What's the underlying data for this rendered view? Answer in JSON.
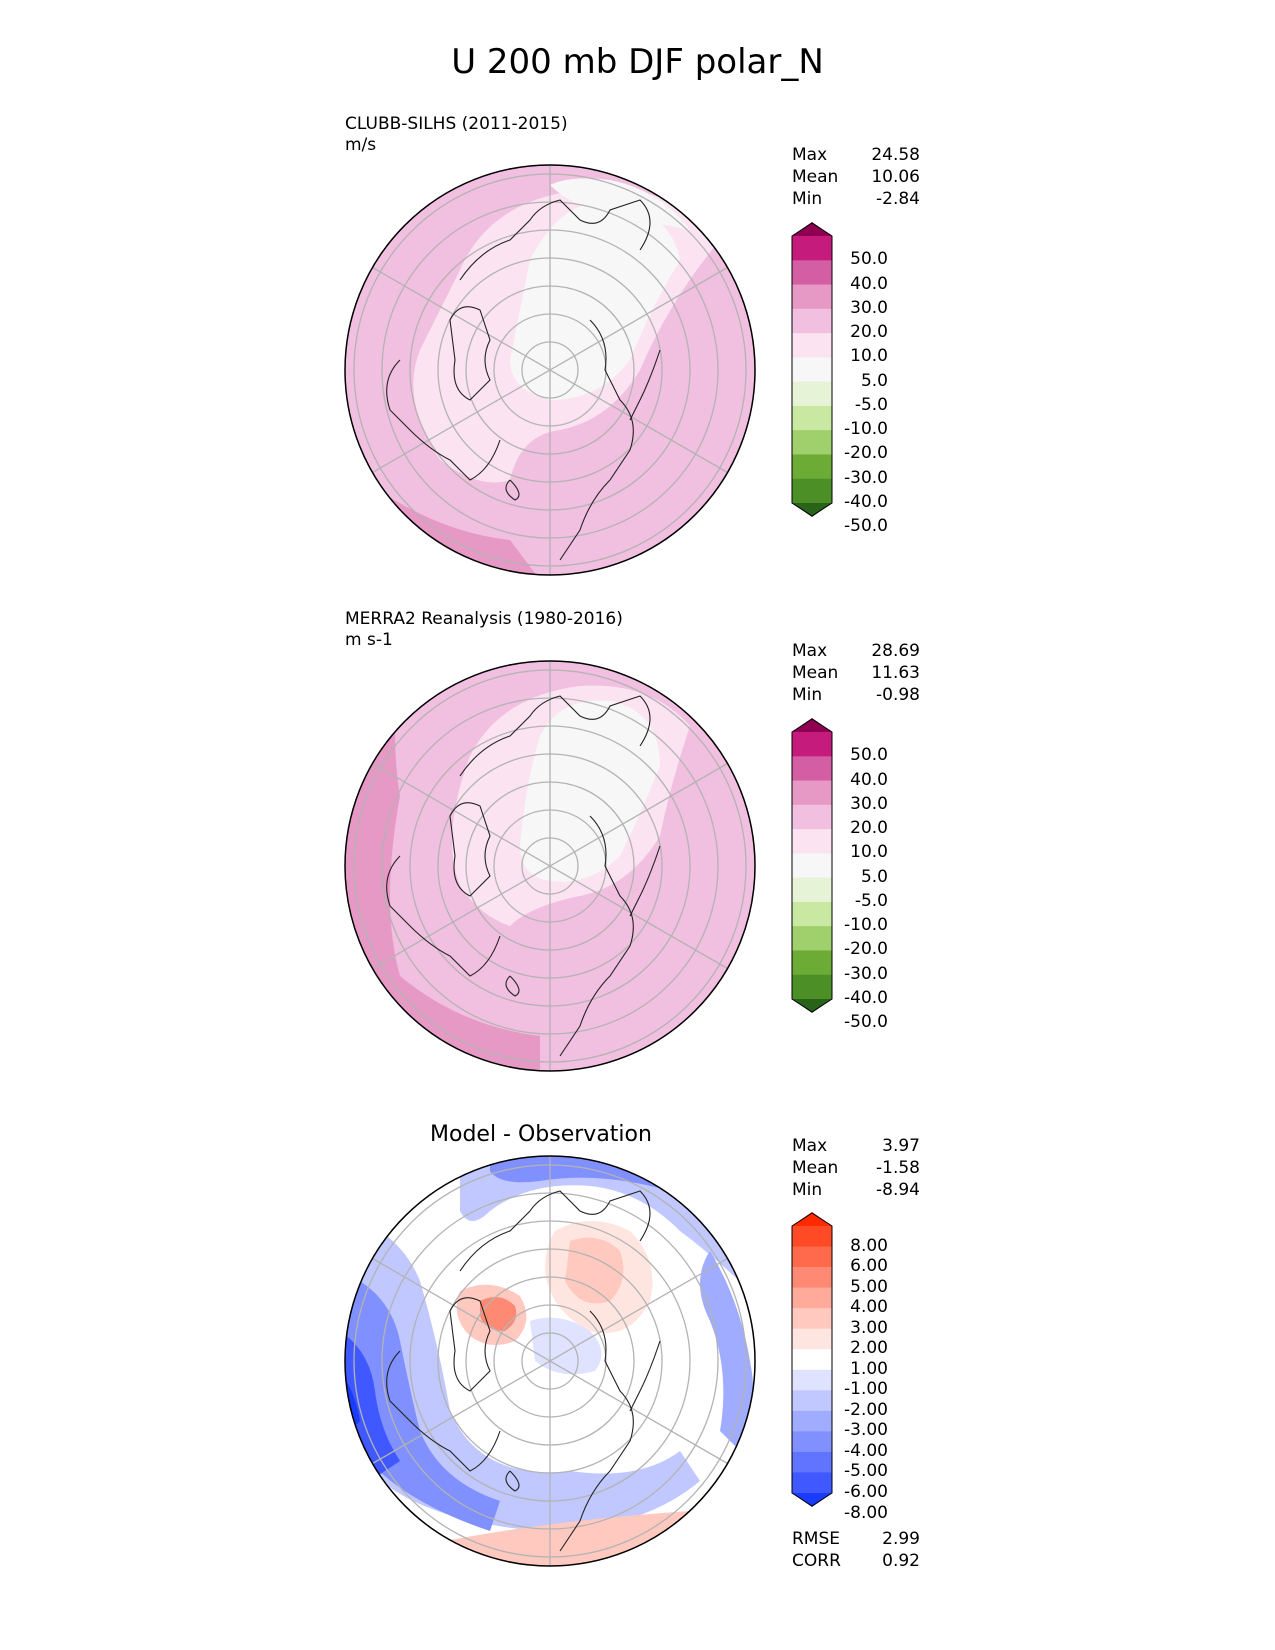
{
  "title": "U 200 mb DJF polar_N",
  "panels": [
    {
      "title": "CLUBB-SILHS (2011-2015)",
      "units": "m/s",
      "stats": {
        "max_label": "Max",
        "max": "24.58",
        "mean_label": "Mean",
        "mean": "10.06",
        "min_label": "Min",
        "min": "-2.84"
      },
      "colorbar": {
        "labels": [
          "50.0",
          "40.0",
          "30.0",
          "20.0",
          "10.0",
          "5.0",
          "-5.0",
          "-10.0",
          "-20.0",
          "-30.0",
          "-40.0",
          "-50.0"
        ],
        "colors": [
          "#8e0152",
          "#c51b7d",
          "#d35ea3",
          "#e799c6",
          "#f1bfdf",
          "#fbe3f1",
          "#f7f7f7",
          "#e7f3d7",
          "#c9e9a3",
          "#9fd06b",
          "#6cab35",
          "#4c8f27",
          "#276419"
        ]
      }
    },
    {
      "title": "MERRA2 Reanalysis (1980-2016)",
      "units": "m s-1",
      "stats": {
        "max_label": "Max",
        "max": "28.69",
        "mean_label": "Mean",
        "mean": "11.63",
        "min_label": "Min",
        "min": "-0.98"
      },
      "colorbar": {
        "labels": [
          "50.0",
          "40.0",
          "30.0",
          "20.0",
          "10.0",
          "5.0",
          "-5.0",
          "-10.0",
          "-20.0",
          "-30.0",
          "-40.0",
          "-50.0"
        ],
        "colors": [
          "#8e0152",
          "#c51b7d",
          "#d35ea3",
          "#e799c6",
          "#f1bfdf",
          "#fbe3f1",
          "#f7f7f7",
          "#e7f3d7",
          "#c9e9a3",
          "#9fd06b",
          "#6cab35",
          "#4c8f27",
          "#276419"
        ]
      }
    },
    {
      "title": "Model - Observation",
      "stats": {
        "max_label": "Max",
        "max": "3.97",
        "mean_label": "Mean",
        "mean": "-1.58",
        "min_label": "Min",
        "min": "-8.94"
      },
      "colorbar": {
        "labels": [
          "8.00",
          "6.00",
          "5.00",
          "4.00",
          "3.00",
          "2.00",
          "1.00",
          "-1.00",
          "-2.00",
          "-3.00",
          "-4.00",
          "-5.00",
          "-6.00",
          "-8.00"
        ],
        "colors": [
          "#ff2a00",
          "#ff4a26",
          "#ff6a4d",
          "#ff8a73",
          "#ffaa9a",
          "#ffc9c0",
          "#ffe5e0",
          "#ffffff",
          "#dfe3ff",
          "#c0c8ff",
          "#a0acff",
          "#8090ff",
          "#6074ff",
          "#4058ff",
          "#1a3cff"
        ]
      },
      "metrics": {
        "rmse_label": "RMSE",
        "rmse": "2.99",
        "corr_label": "CORR",
        "corr": "0.92"
      }
    }
  ]
}
